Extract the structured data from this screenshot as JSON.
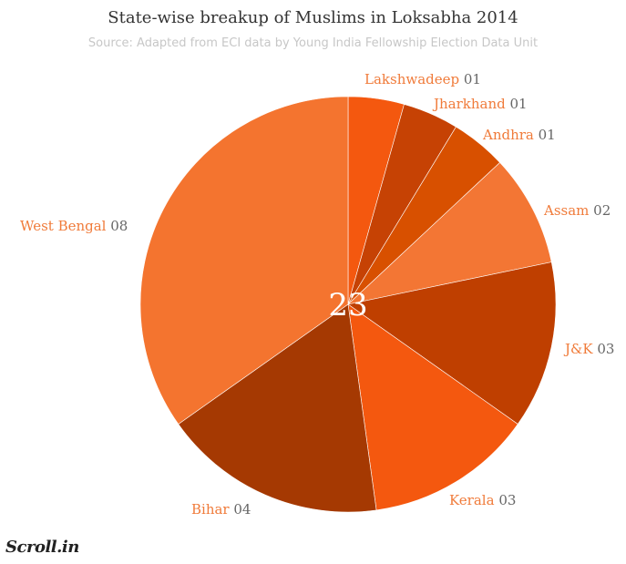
{
  "header": {
    "title": "State-wise breakup of Muslims in Loksabha 2014",
    "subtitle": "Source: Adapted from ECI data by Young India Fellowship Election Data Unit"
  },
  "brand": {
    "logo_text": "Scroll.in"
  },
  "chart_data": {
    "type": "pie",
    "title": "State-wise breakup of Muslims in Loksabha 2014",
    "center_label": "23",
    "categories": [
      "Lakshwadeep",
      "Jharkhand",
      "Andhra",
      "Assam",
      "J&K",
      "Kerala",
      "Bihar",
      "West Bengal"
    ],
    "values": [
      1,
      1,
      1,
      2,
      3,
      3,
      4,
      8
    ],
    "value_labels": [
      "01",
      "01",
      "01",
      "02",
      "03",
      "03",
      "04",
      "08"
    ],
    "colors": [
      "#f4580f",
      "#c64204",
      "#d85000",
      "#f37634",
      "#bf3f00",
      "#f4580f",
      "#a53902",
      "#f4742f"
    ],
    "label_color": "#f07b3a",
    "value_color": "#666666"
  }
}
